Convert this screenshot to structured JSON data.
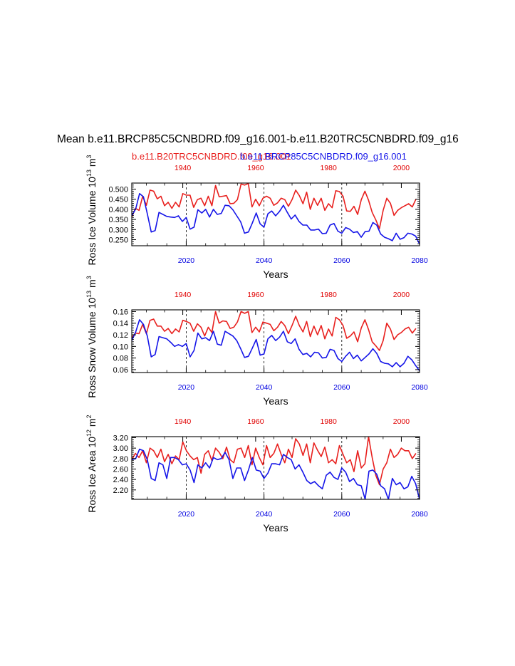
{
  "title": "Mean b.e11.BRCP85C5CNBDRD.f09_g16.001-b.e11.B20TRC5CNBDRD.f09_g16",
  "case_labels": {
    "red": "b.e11.B20TRC5CNBDRD.f09_g16.001",
    "blue": "b.e11.BRCP85C5CNBDRD.f09_g16.001"
  },
  "colors": {
    "red": "#e8201e",
    "blue": "#1515e8",
    "axis": "#000000"
  },
  "chart_data": [
    {
      "type": "line",
      "ylabel": "Ross Ice Volume",
      "yunit_base": "10",
      "yunit_exp": "13",
      "yunit_tail": "m",
      "yunit_tail_exp": "3",
      "xlabel": "Years",
      "ylim": [
        0.22,
        0.53
      ],
      "yticks": [
        0.25,
        0.3,
        0.35,
        0.4,
        0.45,
        0.5
      ],
      "ytick_labels": [
        "0.250",
        "0.300",
        "0.350",
        "0.400",
        "0.450",
        "0.500"
      ],
      "top_axis": {
        "label_color": "red",
        "xlim": [
          1926,
          2005
        ],
        "ticks": [
          1940,
          1960,
          1980,
          2000
        ]
      },
      "bottom_axis": {
        "label_color": "blue",
        "xlim": [
          2006,
          2080
        ],
        "ticks": [
          2020,
          2040,
          2060,
          2080
        ]
      },
      "grid_x": [
        2020,
        2040,
        2060
      ],
      "series": [
        {
          "name": "b.e11.B20TRC5CNBDRD.f09_g16.001",
          "color": "red",
          "x_start": 1926,
          "values": [
            0.362,
            0.405,
            0.395,
            0.465,
            0.42,
            0.495,
            0.49,
            0.452,
            0.465,
            0.418,
            0.435,
            0.405,
            0.435,
            0.412,
            0.478,
            0.47,
            0.47,
            0.41,
            0.448,
            0.455,
            0.418,
            0.465,
            0.418,
            0.518,
            0.462,
            0.465,
            0.468,
            0.428,
            0.43,
            0.448,
            0.525,
            0.52,
            0.528,
            0.412,
            0.45,
            0.418,
            0.455,
            0.465,
            0.455,
            0.42,
            0.432,
            0.455,
            0.448,
            0.415,
            0.448,
            0.495,
            0.468,
            0.428,
            0.485,
            0.4,
            0.455,
            0.42,
            0.455,
            0.395,
            0.428,
            0.408,
            0.492,
            0.488,
            0.465,
            0.392,
            0.39,
            0.415,
            0.375,
            0.448,
            0.49,
            0.445,
            0.385,
            0.348,
            0.305,
            0.395,
            0.455,
            0.43,
            0.37,
            0.395,
            0.408,
            0.418,
            0.428,
            0.412,
            0.45
          ]
        },
        {
          "name": "b.e11.BRCP85C5CNBDRD.f09_g16.001",
          "color": "blue",
          "x_start": 2006,
          "values": [
            0.368,
            0.402,
            0.478,
            0.462,
            0.378,
            0.288,
            0.295,
            0.385,
            0.375,
            0.365,
            0.362,
            0.36,
            0.368,
            0.34,
            0.36,
            0.302,
            0.312,
            0.398,
            0.382,
            0.4,
            0.362,
            0.4,
            0.375,
            0.38,
            0.42,
            0.418,
            0.398,
            0.368,
            0.338,
            0.282,
            0.288,
            0.332,
            0.382,
            0.328,
            0.312,
            0.378,
            0.392,
            0.368,
            0.39,
            0.42,
            0.385,
            0.352,
            0.372,
            0.34,
            0.322,
            0.322,
            0.298,
            0.298,
            0.302,
            0.28,
            0.282,
            0.322,
            0.33,
            0.292,
            0.282,
            0.31,
            0.302,
            0.285,
            0.29,
            0.262,
            0.29,
            0.292,
            0.335,
            0.322,
            0.278,
            0.262,
            0.255,
            0.245,
            0.282,
            0.252,
            0.26,
            0.282,
            0.278,
            0.268,
            0.228
          ]
        }
      ]
    },
    {
      "type": "line",
      "ylabel": "Ross Snow Volume",
      "yunit_base": "10",
      "yunit_exp": "13",
      "yunit_tail": "m",
      "yunit_tail_exp": "3",
      "xlabel": "Years",
      "ylim": [
        0.055,
        0.163
      ],
      "yticks": [
        0.06,
        0.08,
        0.1,
        0.12,
        0.14,
        0.16
      ],
      "ytick_labels": [
        "0.06",
        "0.08",
        "0.10",
        "0.12",
        "0.14",
        "0.16"
      ],
      "top_axis": {
        "label_color": "red",
        "xlim": [
          1926,
          2005
        ],
        "ticks": [
          1940,
          1960,
          1980,
          2000
        ]
      },
      "bottom_axis": {
        "label_color": "blue",
        "xlim": [
          2006,
          2080
        ],
        "ticks": [
          2020,
          2040,
          2060,
          2080
        ]
      },
      "grid_x": [
        2020,
        2040,
        2060
      ],
      "series": [
        {
          "name": "b.e11.B20TRC5CNBDRD.f09_g16.001",
          "color": "red",
          "x_start": 1926,
          "values": [
            0.115,
            0.123,
            0.122,
            0.138,
            0.122,
            0.145,
            0.147,
            0.135,
            0.135,
            0.126,
            0.131,
            0.122,
            0.13,
            0.125,
            0.145,
            0.143,
            0.14,
            0.126,
            0.139,
            0.133,
            0.118,
            0.133,
            0.124,
            0.16,
            0.14,
            0.144,
            0.143,
            0.131,
            0.133,
            0.142,
            0.16,
            0.157,
            0.16,
            0.124,
            0.133,
            0.125,
            0.142,
            0.14,
            0.138,
            0.127,
            0.133,
            0.143,
            0.136,
            0.122,
            0.136,
            0.152,
            0.136,
            0.125,
            0.143,
            0.117,
            0.135,
            0.12,
            0.136,
            0.113,
            0.13,
            0.118,
            0.15,
            0.146,
            0.136,
            0.114,
            0.118,
            0.125,
            0.108,
            0.132,
            0.146,
            0.129,
            0.108,
            0.101,
            0.093,
            0.11,
            0.14,
            0.13,
            0.112,
            0.12,
            0.124,
            0.13,
            0.133,
            0.123,
            0.131
          ]
        },
        {
          "name": "b.e11.BRCP85C5CNBDRD.f09_g16.001",
          "color": "blue",
          "x_start": 2006,
          "values": [
            0.11,
            0.125,
            0.146,
            0.138,
            0.118,
            0.082,
            0.086,
            0.117,
            0.115,
            0.113,
            0.107,
            0.1,
            0.103,
            0.1,
            0.105,
            0.082,
            0.093,
            0.123,
            0.113,
            0.115,
            0.11,
            0.126,
            0.104,
            0.102,
            0.126,
            0.122,
            0.118,
            0.11,
            0.096,
            0.081,
            0.083,
            0.097,
            0.112,
            0.085,
            0.087,
            0.113,
            0.119,
            0.11,
            0.116,
            0.126,
            0.108,
            0.105,
            0.113,
            0.095,
            0.086,
            0.088,
            0.082,
            0.09,
            0.089,
            0.08,
            0.081,
            0.095,
            0.093,
            0.079,
            0.074,
            0.083,
            0.09,
            0.079,
            0.085,
            0.075,
            0.081,
            0.087,
            0.096,
            0.088,
            0.074,
            0.071,
            0.07,
            0.065,
            0.072,
            0.065,
            0.071,
            0.083,
            0.077,
            0.067,
            0.058
          ]
        }
      ]
    },
    {
      "type": "line",
      "ylabel": "Ross Ice Area",
      "yunit_base": "10",
      "yunit_exp": "12",
      "yunit_tail": "m",
      "yunit_tail_exp": "2",
      "xlabel": "Years",
      "ylim": [
        2.02,
        3.22
      ],
      "yticks": [
        2.2,
        2.4,
        2.6,
        2.8,
        3.0,
        3.2
      ],
      "ytick_labels": [
        "2.20",
        "2.40",
        "2.60",
        "2.80",
        "3.00",
        "3.20"
      ],
      "top_axis": {
        "label_color": "red",
        "xlim": [
          1926,
          2005
        ],
        "ticks": [
          1940,
          1960,
          1980,
          2000
        ]
      },
      "bottom_axis": {
        "label_color": "blue",
        "xlim": [
          2006,
          2080
        ],
        "ticks": [
          2020,
          2040,
          2060,
          2080
        ]
      },
      "grid_x": [
        2020,
        2040,
        2060
      ],
      "series": [
        {
          "name": "b.e11.B20TRC5CNBDRD.f09_g16.001",
          "color": "red",
          "x_start": 1926,
          "values": [
            2.78,
            2.9,
            2.82,
            2.95,
            2.72,
            3.0,
            2.95,
            2.82,
            2.98,
            2.74,
            2.88,
            2.7,
            2.85,
            2.78,
            3.12,
            2.95,
            2.85,
            2.78,
            2.82,
            2.52,
            2.88,
            2.95,
            2.76,
            3.0,
            2.92,
            2.8,
            3.02,
            2.78,
            2.72,
            2.98,
            3.0,
            2.82,
            3.05,
            2.68,
            3.0,
            2.82,
            2.68,
            3.05,
            2.82,
            2.9,
            3.08,
            2.88,
            2.72,
            2.98,
            2.82,
            3.18,
            3.08,
            2.86,
            3.08,
            2.72,
            3.1,
            2.96,
            2.84,
            3.02,
            2.72,
            2.78,
            2.7,
            3.05,
            2.88,
            2.72,
            2.78,
            2.55,
            2.95,
            2.62,
            2.7,
            3.22,
            2.82,
            2.48,
            2.3,
            2.6,
            2.72,
            2.98,
            2.82,
            2.88,
            3.0,
            2.95,
            2.95,
            2.8,
            2.9
          ]
        },
        {
          "name": "b.e11.BRCP85C5CNBDRD.f09_g16.001",
          "color": "blue",
          "x_start": 2006,
          "values": [
            2.78,
            2.8,
            2.98,
            2.95,
            2.78,
            2.42,
            2.38,
            2.72,
            2.68,
            2.42,
            2.82,
            2.82,
            2.78,
            2.68,
            2.7,
            2.58,
            2.34,
            2.68,
            2.62,
            2.72,
            2.62,
            2.82,
            2.78,
            2.8,
            2.92,
            2.78,
            2.42,
            2.62,
            2.62,
            2.38,
            2.58,
            2.82,
            2.58,
            2.56,
            2.42,
            2.52,
            2.7,
            2.7,
            2.68,
            2.88,
            2.82,
            2.78,
            2.6,
            2.68,
            2.54,
            2.38,
            2.32,
            2.36,
            2.28,
            2.22,
            2.48,
            2.54,
            2.44,
            2.4,
            2.62,
            2.54,
            2.36,
            2.42,
            2.3,
            2.28,
            2.02,
            2.56,
            2.58,
            2.5,
            2.28,
            2.22,
            2.02,
            2.42,
            2.3,
            2.34,
            2.22,
            2.26,
            2.46,
            2.32,
            2.02
          ]
        }
      ]
    }
  ]
}
